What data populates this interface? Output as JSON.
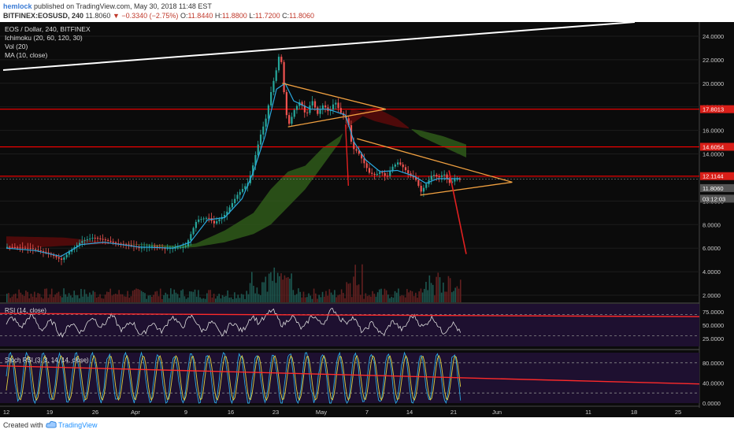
{
  "header": {
    "author": "hemlock",
    "published": "published on TradingView.com, May 30, 2018 11:48 EST",
    "symbol": "BITFINEX:EOSUSD, 240",
    "last": "11.8060",
    "change": "−0.3340 (−2.75%)",
    "o_label": "O:",
    "o_value": "11.8440",
    "h_label": "H:",
    "h_value": "11.8800",
    "l_label": "L:",
    "l_value": "11.7200",
    "c_label": "C:",
    "c_value": "11.8060"
  },
  "legend": {
    "title": "EOS / Dollar, 240, BITFINEX",
    "ichimoku": "Ichimoku (20, 60, 120, 30)",
    "vol": "Vol (20)",
    "ma": "MA (10, close)"
  },
  "rsi_label": "RSI (14, close)",
  "stoch_label": "Stoch RSI (3, 3, 14, 14, close)",
  "footer": {
    "created": "Created with",
    "brand": "TradingView"
  },
  "colors": {
    "background": "#0b0b0b",
    "up": "#26a69a",
    "down": "#ef5350",
    "ma": "#2aa9e0",
    "resistance": "#ff0000",
    "triangle": "#f0a040",
    "trendline": "#ffffff",
    "cloud_bull": "#2f5a1a",
    "cloud_bear": "#5a0a0a",
    "panel_bg": "#1e1030"
  },
  "chart_data": {
    "type": "candlestick",
    "symbol": "EOSUSD",
    "price_axis": [
      "24.0000",
      "22.0000",
      "20.0000",
      "18.0000",
      "16.0000",
      "14.0000",
      "12.0000",
      "10.0000",
      "8.0000",
      "6.0000",
      "4.0000",
      "2.0000"
    ],
    "ylim": [
      1.4,
      25.2
    ],
    "x_ticks": [
      "12",
      "19",
      "26",
      "Apr",
      "9",
      "16",
      "23",
      "May",
      "7",
      "14",
      "21",
      "Jun",
      "11",
      "18",
      "25"
    ],
    "price_badges": [
      {
        "value": "17.8013",
        "color": "#ff0000"
      },
      {
        "value": "14.6054",
        "color": "#ff0000"
      },
      {
        "value": "12.1144",
        "color": "#ff0000"
      },
      {
        "value": "11.8060",
        "color": "#dddddd"
      },
      {
        "value": "03:12:03",
        "color": "#dddddd"
      }
    ],
    "resistance_levels": [
      17.8,
      14.6,
      12.11
    ],
    "price_path": [
      [
        0,
        6.1
      ],
      [
        8,
        6.0
      ],
      [
        14,
        5.6
      ],
      [
        19,
        5.0
      ],
      [
        22,
        5.8
      ],
      [
        26,
        6.6
      ],
      [
        30,
        6.9
      ],
      [
        34,
        6.7
      ],
      [
        38,
        6.4
      ],
      [
        42,
        6.3
      ],
      [
        46,
        6.0
      ],
      [
        50,
        6.2
      ],
      [
        54,
        6.0
      ],
      [
        58,
        6.0
      ],
      [
        62,
        6.1
      ],
      [
        66,
        8.4
      ],
      [
        70,
        8.6
      ],
      [
        72,
        8.1
      ],
      [
        76,
        8.9
      ],
      [
        80,
        10.5
      ],
      [
        84,
        11.6
      ],
      [
        86,
        13.5
      ],
      [
        88,
        15.5
      ],
      [
        90,
        17.0
      ],
      [
        92,
        19.5
      ],
      [
        94,
        21.5
      ],
      [
        95,
        23.0
      ],
      [
        96,
        20.0
      ],
      [
        97,
        17.5
      ],
      [
        98,
        16.5
      ],
      [
        100,
        17.8
      ],
      [
        102,
        18.5
      ],
      [
        104,
        17.2
      ],
      [
        106,
        18.6
      ],
      [
        108,
        17.4
      ],
      [
        110,
        18.2
      ],
      [
        112,
        17.5
      ],
      [
        114,
        18.5
      ],
      [
        116,
        17.5
      ],
      [
        118,
        17.0
      ],
      [
        119,
        16.3
      ],
      [
        120,
        14.5
      ],
      [
        122,
        14.2
      ],
      [
        124,
        13.3
      ],
      [
        126,
        12.4
      ],
      [
        128,
        12.2
      ],
      [
        130,
        12.5
      ],
      [
        132,
        12.0
      ],
      [
        134,
        12.9
      ],
      [
        136,
        13.3
      ],
      [
        138,
        12.8
      ],
      [
        140,
        12.2
      ],
      [
        142,
        11.9
      ],
      [
        144,
        10.8
      ],
      [
        146,
        11.5
      ],
      [
        148,
        12.3
      ],
      [
        150,
        12.0
      ],
      [
        152,
        12.3
      ],
      [
        154,
        11.5
      ],
      [
        156,
        11.9
      ],
      [
        158,
        11.8
      ]
    ],
    "ma_path": [
      [
        0,
        6.0
      ],
      [
        10,
        5.8
      ],
      [
        19,
        5.3
      ],
      [
        26,
        6.3
      ],
      [
        34,
        6.5
      ],
      [
        46,
        6.1
      ],
      [
        58,
        6.0
      ],
      [
        64,
        6.5
      ],
      [
        70,
        8.4
      ],
      [
        76,
        8.6
      ],
      [
        82,
        10.2
      ],
      [
        86,
        12.5
      ],
      [
        90,
        15.5
      ],
      [
        94,
        19.5
      ],
      [
        97,
        20.0
      ],
      [
        100,
        18.5
      ],
      [
        106,
        17.8
      ],
      [
        112,
        17.8
      ],
      [
        118,
        17.3
      ],
      [
        121,
        15.0
      ],
      [
        125,
        13.5
      ],
      [
        130,
        12.5
      ],
      [
        136,
        12.6
      ],
      [
        142,
        12.1
      ],
      [
        146,
        11.5
      ],
      [
        150,
        11.9
      ],
      [
        158,
        11.9
      ]
    ],
    "cloud_top": [
      [
        0,
        5.9
      ],
      [
        20,
        6.2
      ],
      [
        40,
        6.4
      ],
      [
        60,
        6.2
      ],
      [
        66,
        6.4
      ],
      [
        76,
        7.5
      ],
      [
        86,
        9.0
      ],
      [
        92,
        11.0
      ],
      [
        98,
        12.5
      ],
      [
        104,
        13.0
      ],
      [
        110,
        14.5
      ],
      [
        116,
        15.5
      ],
      [
        120,
        16.5
      ],
      [
        124,
        17.2
      ],
      [
        128,
        16.8
      ],
      [
        136,
        16.3
      ],
      [
        144,
        16.0
      ],
      [
        152,
        15.5
      ],
      [
        160,
        14.8
      ]
    ],
    "cloud_bottom": [
      [
        0,
        7.0
      ],
      [
        20,
        6.9
      ],
      [
        40,
        6.4
      ],
      [
        60,
        6.0
      ],
      [
        66,
        6.1
      ],
      [
        76,
        6.5
      ],
      [
        86,
        7.2
      ],
      [
        92,
        8.0
      ],
      [
        98,
        9.5
      ],
      [
        104,
        11.0
      ],
      [
        110,
        13.0
      ],
      [
        116,
        15.0
      ],
      [
        120,
        17.8
      ],
      [
        124,
        17.6
      ],
      [
        128,
        18.0
      ],
      [
        136,
        17.0
      ],
      [
        144,
        15.5
      ],
      [
        152,
        14.6
      ],
      [
        160,
        13.7
      ]
    ],
    "triangle_1": [
      [
        96,
        20.0
      ],
      [
        132,
        17.8
      ],
      [
        98,
        16.3
      ]
    ],
    "triangle_2": [
      [
        122,
        15.3
      ],
      [
        176,
        11.6
      ],
      [
        144,
        10.5
      ]
    ],
    "projection": [
      [
        154,
        12.6
      ],
      [
        160,
        5.5
      ]
    ],
    "rsi_levels": [
      70,
      30
    ],
    "stoch_levels": [
      80,
      20
    ],
    "rsi_axis": [
      "75.0000",
      "50.0000",
      "25.0000"
    ],
    "stoch_axis": [
      "80.0000",
      "40.0000",
      "0.0000"
    ]
  }
}
